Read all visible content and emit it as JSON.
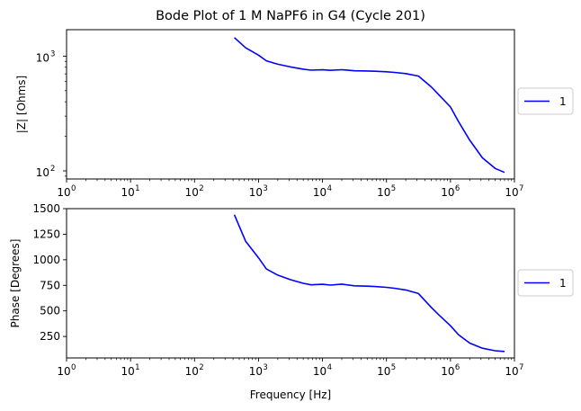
{
  "chart_data": [
    {
      "type": "line",
      "title": "Bode Plot of 1 M NaPF6 in G4 (Cycle 201)",
      "xlabel": "",
      "ylabel": "|Z| [Ohms]",
      "xscale": "log",
      "yscale": "log",
      "xlim": [
        1,
        10000000
      ],
      "ylim": [
        85,
        1700
      ],
      "grid": false,
      "legend_position": "outside-right",
      "x_ticks": [
        {
          "base": "10",
          "exp": "0"
        },
        {
          "base": "10",
          "exp": "1"
        },
        {
          "base": "10",
          "exp": "2"
        },
        {
          "base": "10",
          "exp": "3"
        },
        {
          "base": "10",
          "exp": "4"
        },
        {
          "base": "10",
          "exp": "5"
        },
        {
          "base": "10",
          "exp": "6"
        },
        {
          "base": "10",
          "exp": "7"
        }
      ],
      "y_ticks": [
        {
          "value": 100,
          "base": "10",
          "exp": "2"
        },
        {
          "value": 1000,
          "base": "10",
          "exp": "3"
        }
      ],
      "series": [
        {
          "name": "1",
          "color": "#0000ff",
          "x": [
            420,
            630,
            1000,
            1330,
            2000,
            3160,
            5000,
            6600,
            10000,
            13300,
            20000,
            31600,
            50000,
            66000,
            100000,
            133000,
            200000,
            316000,
            500000,
            660000,
            1000000,
            1330000,
            2000000,
            3160000,
            5000000,
            7000000
          ],
          "y": [
            1450,
            1180,
            1020,
            910,
            850,
            805,
            770,
            755,
            760,
            752,
            762,
            745,
            742,
            738,
            730,
            722,
            705,
            670,
            540,
            460,
            360,
            270,
            185,
            130,
            105,
            97
          ]
        }
      ]
    },
    {
      "type": "line",
      "title": "",
      "xlabel": "Frequency [Hz]",
      "ylabel": "Phase [Degrees]",
      "xscale": "log",
      "yscale": "linear",
      "xlim": [
        1,
        10000000
      ],
      "ylim": [
        40,
        1500
      ],
      "grid": false,
      "legend_position": "outside-right",
      "x_ticks": [
        {
          "base": "10",
          "exp": "0"
        },
        {
          "base": "10",
          "exp": "1"
        },
        {
          "base": "10",
          "exp": "2"
        },
        {
          "base": "10",
          "exp": "3"
        },
        {
          "base": "10",
          "exp": "4"
        },
        {
          "base": "10",
          "exp": "5"
        },
        {
          "base": "10",
          "exp": "6"
        },
        {
          "base": "10",
          "exp": "7"
        }
      ],
      "y_ticks": [
        250,
        500,
        750,
        1000,
        1250,
        1500
      ],
      "series": [
        {
          "name": "1",
          "color": "#0000ff",
          "x": [
            420,
            630,
            1000,
            1330,
            2000,
            3160,
            5000,
            6600,
            10000,
            13300,
            20000,
            31600,
            50000,
            66000,
            100000,
            133000,
            200000,
            316000,
            500000,
            660000,
            1000000,
            1330000,
            2000000,
            3160000,
            5000000,
            7000000
          ],
          "y": [
            1440,
            1180,
            1020,
            910,
            850,
            805,
            770,
            755,
            760,
            752,
            762,
            745,
            742,
            738,
            730,
            722,
            705,
            670,
            535,
            460,
            355,
            268,
            185,
            135,
            110,
            103
          ]
        }
      ]
    }
  ]
}
